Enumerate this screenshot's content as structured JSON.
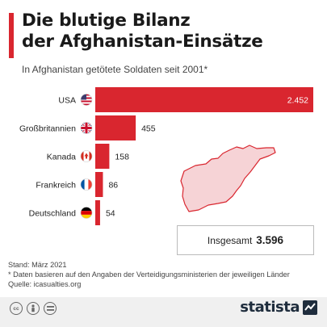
{
  "header": {
    "title_line1": "Die blutige Bilanz",
    "title_line2": "der Afghanistan-Einsätze",
    "subtitle": "In Afghanistan getötete Soldaten seit 2001*"
  },
  "chart_data": {
    "type": "bar",
    "orientation": "horizontal",
    "categories": [
      "USA",
      "Großbritannien",
      "Kanada",
      "Frankreich",
      "Deutschland"
    ],
    "values": [
      2452,
      455,
      158,
      86,
      54
    ],
    "value_labels": [
      "2.452",
      "455",
      "158",
      "86",
      "54"
    ],
    "flags": [
      "us-flag-icon",
      "uk-flag-icon",
      "canada-flag-icon",
      "france-flag-icon",
      "germany-flag-icon"
    ],
    "xlim": [
      0,
      2452
    ],
    "grid": false,
    "bar_color": "#d9262f"
  },
  "total": {
    "label": "Insgesamt",
    "value": "3.596"
  },
  "map_icon": "afghanistan-map-icon",
  "footnotes": {
    "stand": "Stand: März 2021",
    "note": "* Daten basieren auf den Angaben der Verteidigungsministerien der jeweiligen Länder",
    "source": "Quelle: icasualties.org"
  },
  "footer": {
    "cc_icons": [
      "cc-icon",
      "by-icon",
      "nd-icon"
    ],
    "logo_text": "statista"
  },
  "colors": {
    "accent": "#d9262f",
    "map_fill": "#f6d3d6",
    "map_stroke": "#d9262f"
  }
}
